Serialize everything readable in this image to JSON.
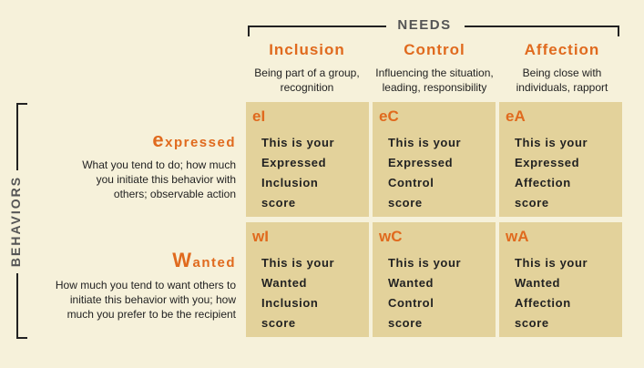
{
  "needs": {
    "title": "NEEDS",
    "columns": [
      {
        "title": "Inclusion",
        "desc1": "Being part of a group,",
        "desc2": "recognition"
      },
      {
        "title": "Control",
        "desc1": "Influencing the situation,",
        "desc2": "leading, responsibility"
      },
      {
        "title": "Affection",
        "desc1": "Being close with",
        "desc2": "individuals, rapport"
      }
    ]
  },
  "behaviors": {
    "title": "BEHAVIORS",
    "rows": [
      {
        "title_initial": "e",
        "title_rest": "xpressed",
        "desc": [
          "What you tend to do; how much",
          "you initiate this behavior with",
          "others; observable action"
        ]
      },
      {
        "title_initial": "W",
        "title_rest": "anted",
        "desc": [
          "How much you tend to want others to",
          "initiate this behavior with you; how",
          "much you prefer to be the recipient"
        ]
      }
    ]
  },
  "cells": [
    {
      "code": "eI",
      "lines": [
        "This is your",
        "Expressed",
        "Inclusion",
        "score"
      ]
    },
    {
      "code": "eC",
      "lines": [
        "This is your",
        "Expressed",
        "Control",
        "score"
      ]
    },
    {
      "code": "eA",
      "lines": [
        "This is your",
        "Expressed",
        "Affection",
        "score"
      ]
    },
    {
      "code": "wI",
      "lines": [
        "This is your",
        "Wanted",
        "Inclusion",
        "score"
      ]
    },
    {
      "code": "wC",
      "lines": [
        "This is your",
        "Wanted",
        "Control",
        "score"
      ]
    },
    {
      "code": "wA",
      "lines": [
        "This is your",
        "Wanted",
        "Affection",
        "score"
      ]
    }
  ],
  "colors": {
    "accent": "#e06a1e",
    "cell": "#e3d29b",
    "background": "#f6f1da"
  }
}
